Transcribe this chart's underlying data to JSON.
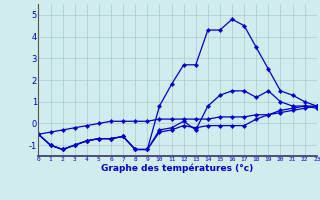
{
  "x": [
    0,
    1,
    2,
    3,
    4,
    5,
    6,
    7,
    8,
    9,
    10,
    11,
    12,
    13,
    14,
    15,
    16,
    17,
    18,
    19,
    20,
    21,
    22,
    23
  ],
  "line_main": [
    -0.5,
    -1.0,
    -1.2,
    -1.0,
    -0.8,
    -0.7,
    -0.7,
    -0.6,
    -1.2,
    -1.2,
    0.8,
    1.8,
    2.7,
    2.7,
    4.3,
    4.3,
    4.8,
    4.5,
    3.5,
    2.5,
    1.5,
    1.3,
    1.0,
    0.8
  ],
  "line_avg": [
    -0.5,
    -1.0,
    -1.2,
    -1.0,
    -0.8,
    -0.7,
    -0.7,
    -0.6,
    -1.2,
    -1.2,
    -0.3,
    -0.2,
    0.1,
    -0.3,
    0.8,
    1.3,
    1.5,
    1.5,
    1.2,
    1.5,
    1.0,
    0.8,
    0.8,
    0.7
  ],
  "line_min": [
    -0.5,
    -1.0,
    -1.2,
    -1.0,
    -0.8,
    -0.7,
    -0.7,
    -0.6,
    -1.2,
    -1.2,
    -0.4,
    -0.3,
    -0.1,
    -0.2,
    -0.1,
    -0.1,
    -0.1,
    -0.1,
    0.2,
    0.4,
    0.6,
    0.7,
    0.8,
    0.8
  ],
  "line_trend": [
    -0.5,
    -0.4,
    -0.3,
    -0.2,
    -0.1,
    0.0,
    0.1,
    0.1,
    0.1,
    0.1,
    0.2,
    0.2,
    0.2,
    0.2,
    0.2,
    0.3,
    0.3,
    0.3,
    0.4,
    0.4,
    0.5,
    0.6,
    0.7,
    0.8
  ],
  "ylim": [
    -1.5,
    5.5
  ],
  "xlim": [
    0,
    23
  ],
  "yticks": [
    -1,
    0,
    1,
    2,
    3,
    4,
    5
  ],
  "xticks": [
    0,
    1,
    2,
    3,
    4,
    5,
    6,
    7,
    8,
    9,
    10,
    11,
    12,
    13,
    14,
    15,
    16,
    17,
    18,
    19,
    20,
    21,
    22,
    23
  ],
  "xlabel": "Graphe des températures (°c)",
  "line_color": "#0000cc",
  "bg_color": "#d0ecec",
  "grid_color": "#aacccc",
  "marker": "D",
  "marker_size": 2.2,
  "linewidth": 0.9
}
